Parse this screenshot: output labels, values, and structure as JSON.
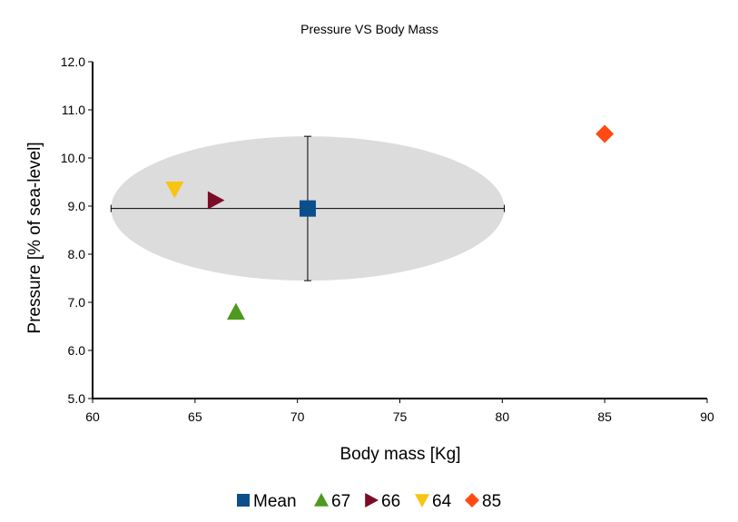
{
  "chart_data": {
    "type": "scatter",
    "title": "Pressure VS Body Mass",
    "xlabel": "Body mass [Kg]",
    "ylabel": "Pressure [% of sea-level]",
    "xlim": [
      60,
      90
    ],
    "ylim": [
      5.0,
      12.0
    ],
    "xticks": [
      "60",
      "65",
      "70",
      "75",
      "80",
      "85",
      "90"
    ],
    "yticks": [
      "5.0",
      "6.0",
      "7.0",
      "8.0",
      "9.0",
      "10.0",
      "11.0",
      "12.0"
    ],
    "grid": false,
    "legend_position": "bottom",
    "series": [
      {
        "name": "Mean",
        "marker": "square",
        "color": "#0a4f8c",
        "points": [
          [
            70.5,
            8.95
          ]
        ],
        "error_x": [
          9.6,
          9.6
        ],
        "error_y": [
          1.5,
          1.5
        ],
        "ellipse": true
      },
      {
        "name": "67",
        "marker": "triangle-up",
        "color": "#4e9a1f",
        "points": [
          [
            67.0,
            6.8
          ]
        ]
      },
      {
        "name": "66",
        "marker": "triangle-right",
        "color": "#7b0c27",
        "points": [
          [
            66.0,
            9.12
          ]
        ]
      },
      {
        "name": "64",
        "marker": "triangle-down",
        "color": "#f7c413",
        "points": [
          [
            64.0,
            9.35
          ]
        ]
      },
      {
        "name": "85",
        "marker": "diamond",
        "color": "#ff4a12",
        "points": [
          [
            85.0,
            10.5
          ]
        ]
      }
    ],
    "ellipse_color": "#dcdcdc"
  }
}
